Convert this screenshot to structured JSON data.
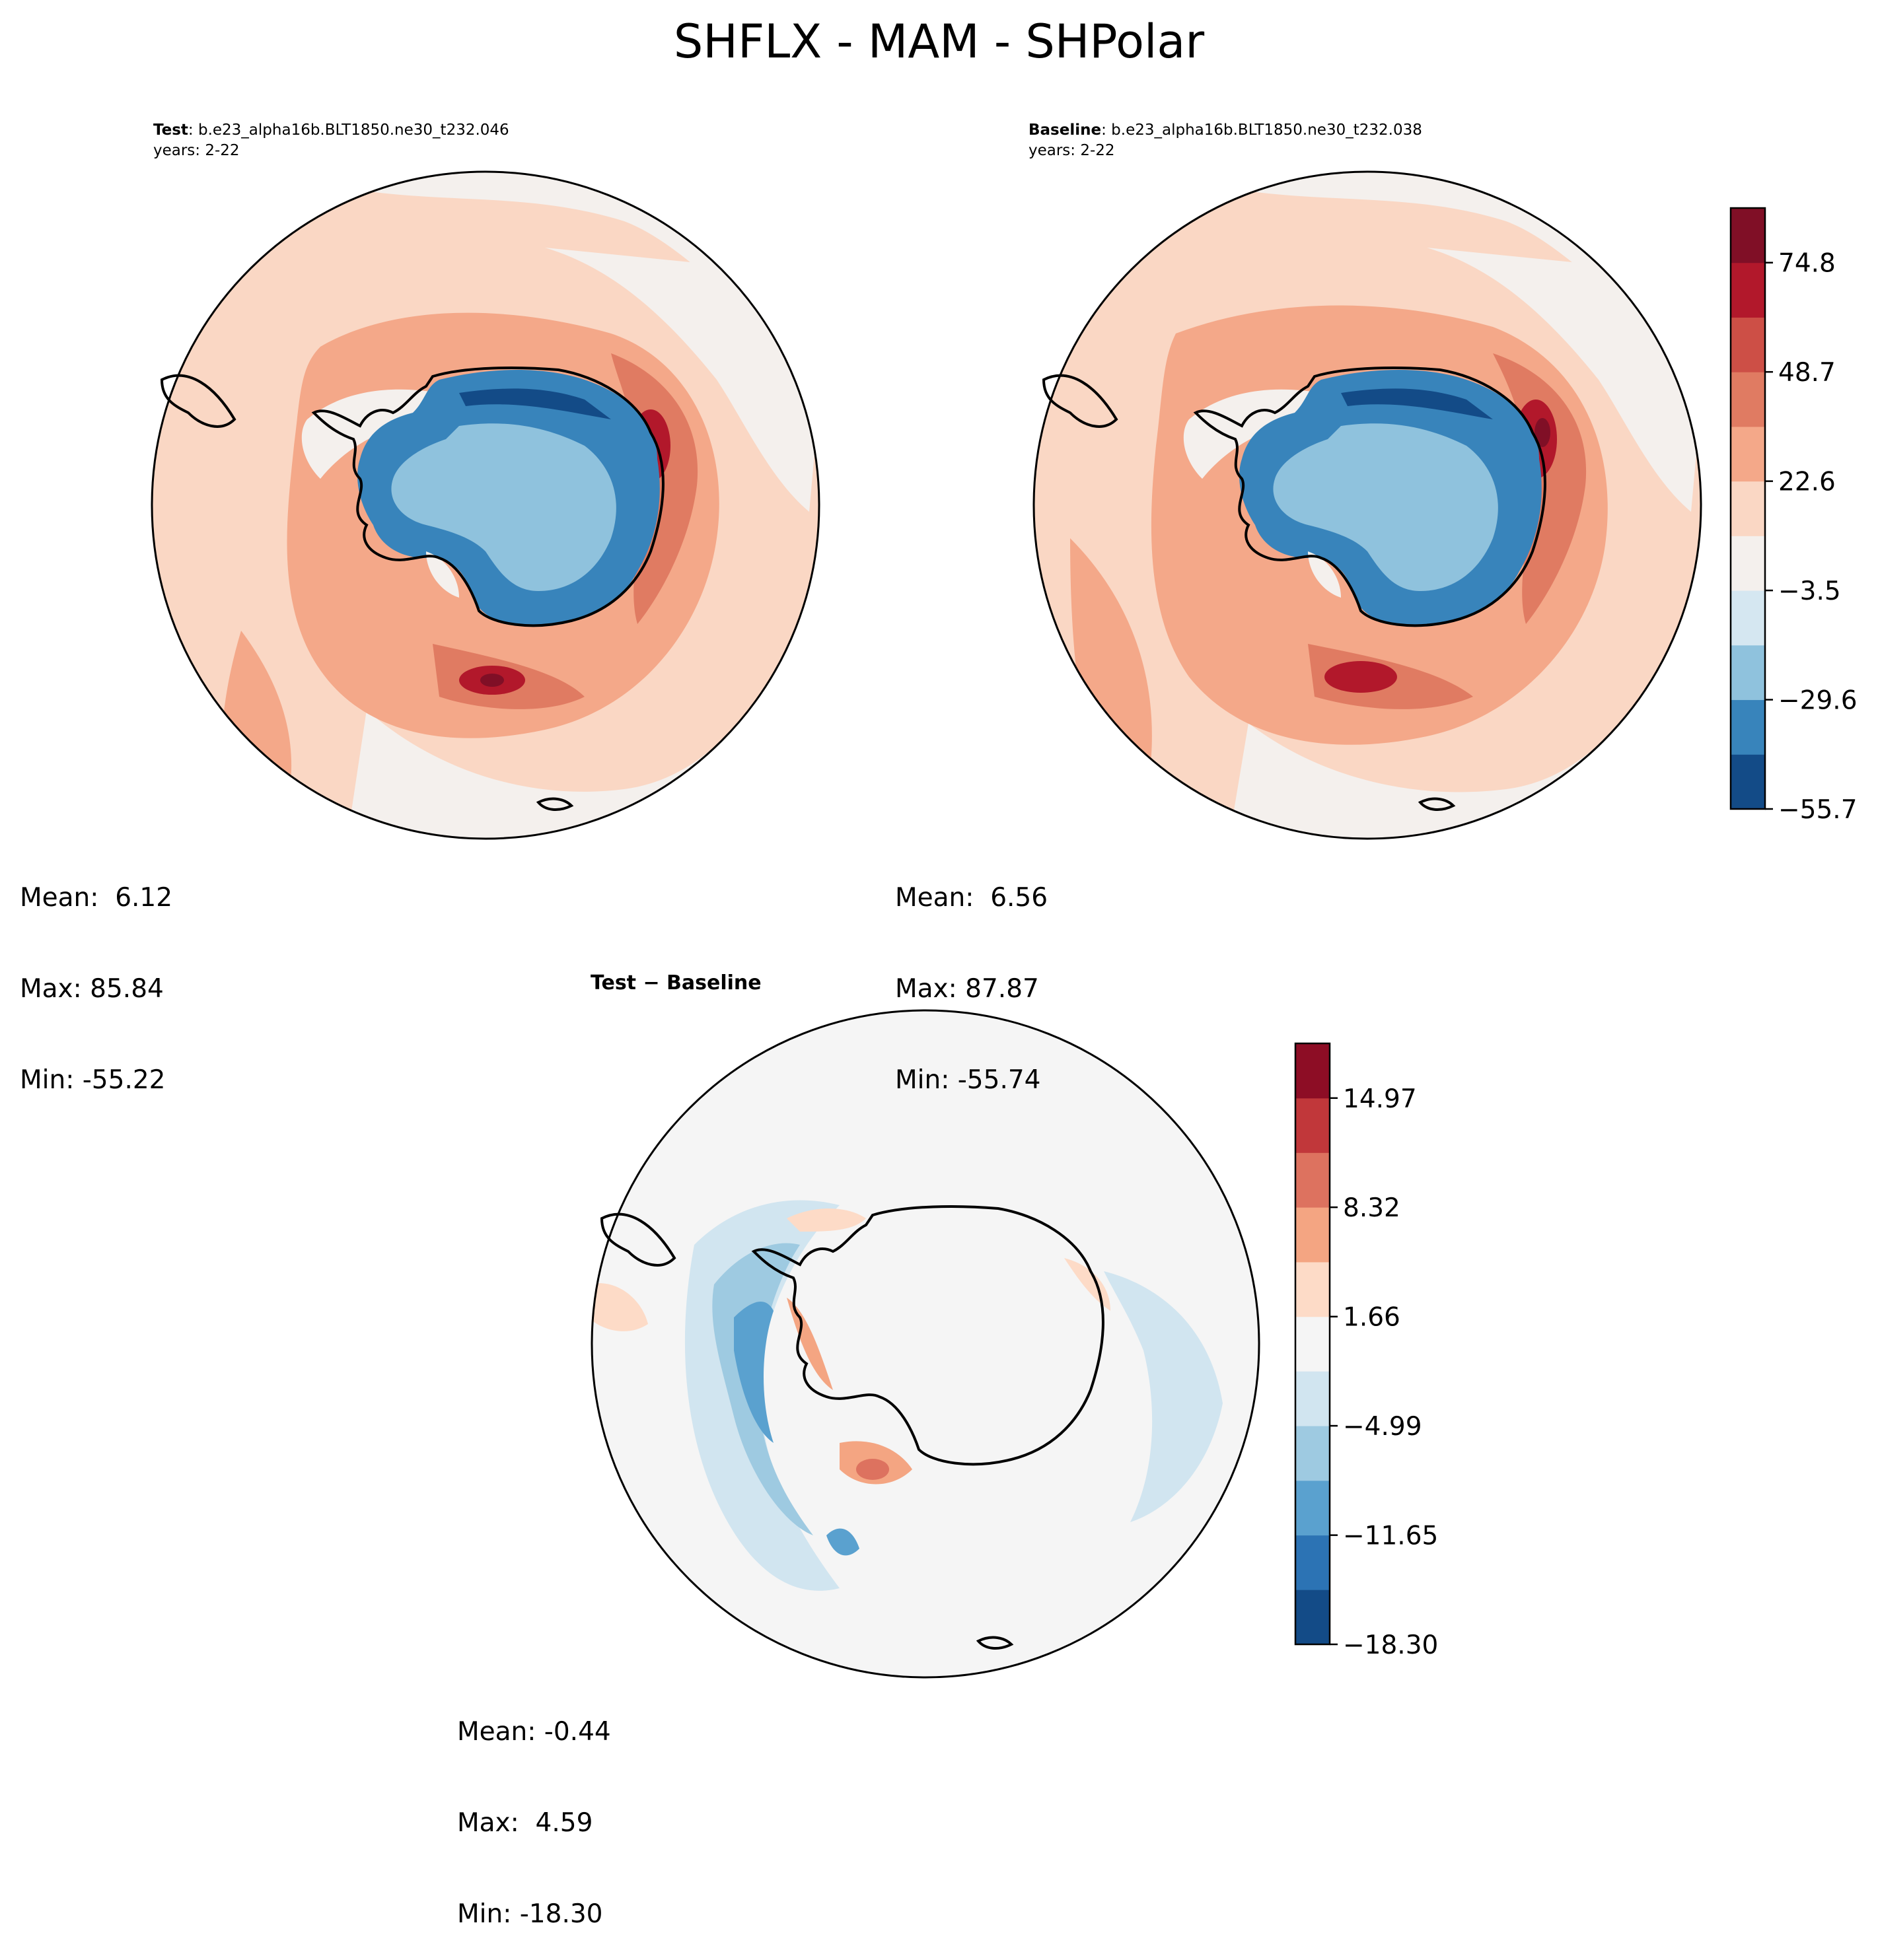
{
  "figure": {
    "title": "SHFLX - MAM - SHPolar"
  },
  "panels": {
    "test": {
      "label_bold": "Test",
      "label_rest": ": b.e23_alpha16b.BLT1850.ne30_t232.046",
      "years": "years: 2-22",
      "mean_line": "Mean:  6.12",
      "max_line": "Max: 85.84",
      "min_line": "Min: -55.22"
    },
    "baseline": {
      "label_bold": "Baseline",
      "label_rest": ": b.e23_alpha16b.BLT1850.ne30_t232.038",
      "years": "years: 2-22",
      "mean_line": "Mean:  6.56",
      "max_line": "Max: 87.87",
      "min_line": "Min: -55.74"
    },
    "diff": {
      "title": "Test − Baseline",
      "mean_line": "Mean: -0.44",
      "max_line": "Max:  4.59",
      "min_line": "Min: -18.30"
    }
  },
  "chart_data": [
    {
      "type": "heatmap",
      "projection": "south-polar-stereographic",
      "title": "Test : b.e23_alpha16b.BLT1850.ne30_t232.046",
      "variable": "SHFLX",
      "season": "MAM",
      "stats": {
        "mean": 6.12,
        "max": 85.84,
        "min": -55.22
      }
    },
    {
      "type": "heatmap",
      "projection": "south-polar-stereographic",
      "title": "Baseline : b.e23_alpha16b.BLT1850.ne30_t232.038",
      "variable": "SHFLX",
      "season": "MAM",
      "stats": {
        "mean": 6.56,
        "max": 87.87,
        "min": -55.74
      }
    },
    {
      "type": "heatmap",
      "projection": "south-polar-stereographic",
      "title": "Test − Baseline",
      "variable": "SHFLX",
      "season": "MAM",
      "stats": {
        "mean": -0.44,
        "max": 4.59,
        "min": -18.3
      }
    }
  ],
  "colorbars": {
    "main": {
      "levels": [
        -55.7,
        -42.65,
        -29.6,
        -16.55,
        -3.5,
        9.55,
        22.6,
        35.65,
        48.7,
        61.75,
        74.8,
        87.85
      ],
      "tick_labels": [
        "−55.7",
        "−29.6",
        "−3.5",
        "22.6",
        "48.7",
        "74.8"
      ],
      "tick_values": [
        -55.7,
        -29.6,
        -3.5,
        22.6,
        48.7,
        74.8
      ],
      "colors": [
        "#134b87",
        "#3884bb",
        "#8fc2dd",
        "#d5e7f1",
        "#f4f0ed",
        "#fad7c4",
        "#f4a889",
        "#e07b62",
        "#cd4f46",
        "#b2182b",
        "#800f26"
      ]
    },
    "diff": {
      "levels": [
        -18.3,
        -14.97,
        -11.65,
        -8.32,
        -4.99,
        -1.66,
        1.66,
        4.99,
        8.32,
        11.65,
        14.97,
        18.3
      ],
      "tick_labels": [
        "−18.30",
        "−11.65",
        "−4.99",
        "1.66",
        "8.32",
        "14.97"
      ],
      "tick_values": [
        -18.3,
        -11.65,
        -4.99,
        1.66,
        8.32,
        14.97
      ],
      "colors": [
        "#134b87",
        "#2c73b4",
        "#5aa1cf",
        "#9ecae1",
        "#d1e5f0",
        "#f5f5f5",
        "#fddbc7",
        "#f4a582",
        "#dd725f",
        "#c1373a",
        "#8d0d25"
      ]
    }
  }
}
